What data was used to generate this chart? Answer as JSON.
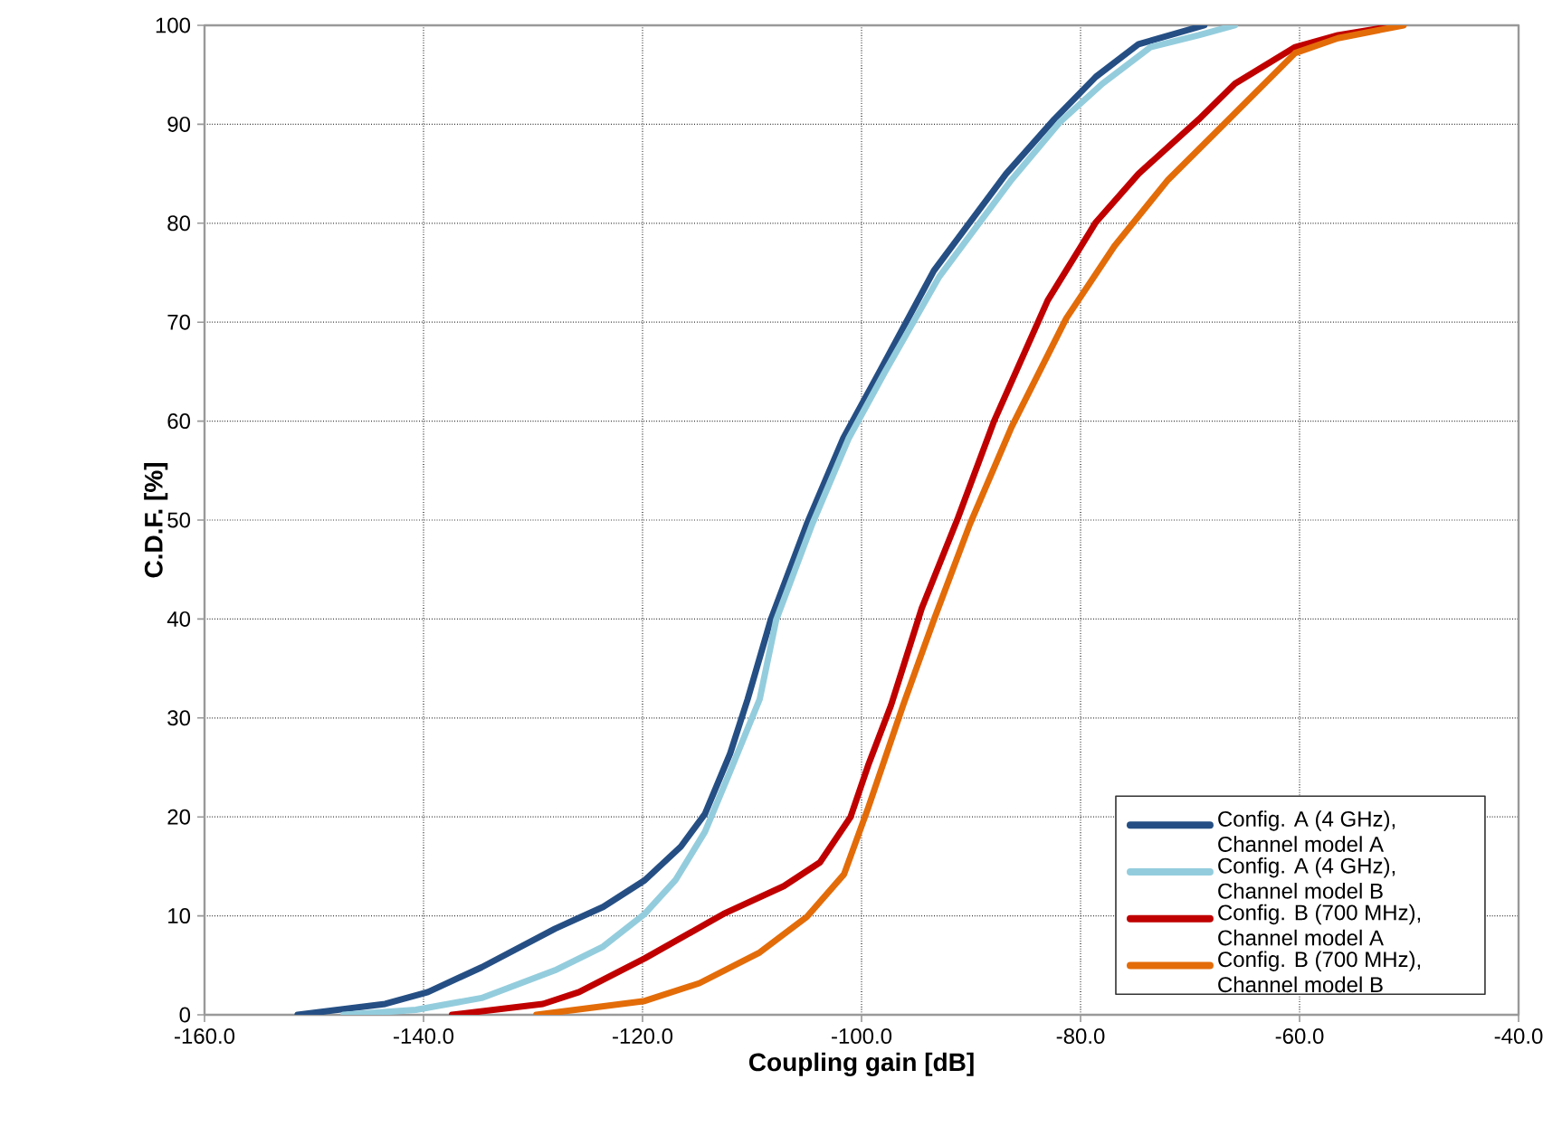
{
  "chart_data": {
    "type": "line",
    "xlabel": "Coupling gain [dB]",
    "ylabel": "C.D.F. [%]",
    "xlim": [
      -160,
      -40
    ],
    "ylim": [
      0,
      100
    ],
    "xticks": [
      {
        "value": -160,
        "label": "-160.0"
      },
      {
        "value": -140,
        "label": "-140.0"
      },
      {
        "value": -120,
        "label": "-120.0"
      },
      {
        "value": -100,
        "label": "-100.0"
      },
      {
        "value": -80,
        "label": "-80.0"
      },
      {
        "value": -60,
        "label": "-60.0"
      },
      {
        "value": -40,
        "label": "-40.0"
      }
    ],
    "yticks": [
      0,
      10,
      20,
      30,
      40,
      50,
      60,
      70,
      80,
      90,
      100
    ],
    "grid": true,
    "legend": "bottom right",
    "marker": "none",
    "line_style": "solid",
    "series": [
      {
        "name": "Config. A (4 GHz), Channel model A",
        "color": "#254f84",
        "x": [
          -151.5,
          -143.5,
          -139.6,
          -134.7,
          -128,
          -123.6,
          -119.8,
          -116.5,
          -114.3,
          -112,
          -110.4,
          -108.3,
          -105,
          -101.7,
          -98.4,
          -93.4,
          -86.8,
          -82.4,
          -78.6,
          -74.7,
          -68.7
        ],
        "values": [
          0,
          1.1,
          2.3,
          4.8,
          8.7,
          10.9,
          13.6,
          17,
          20.3,
          26.4,
          31.9,
          39.9,
          49.6,
          58.2,
          64.9,
          75.2,
          85,
          90.5,
          94.8,
          98.1,
          100
        ]
      },
      {
        "name": "Config. A (4 GHz), Channel model B",
        "color": "#93cddd",
        "x": [
          -147.3,
          -140.7,
          -134.7,
          -128,
          -123.6,
          -119.8,
          -117,
          -114.3,
          -112,
          -109.3,
          -107.8,
          -104.5,
          -101.2,
          -97.9,
          -92.9,
          -86.3,
          -81.9,
          -78,
          -73.6,
          -69.2,
          -65.9
        ],
        "values": [
          0,
          0.5,
          1.7,
          4.5,
          6.9,
          10.2,
          13.6,
          18.5,
          24.6,
          31.9,
          39.9,
          49.6,
          58.2,
          64.9,
          74.6,
          84.4,
          90.2,
          94.1,
          97.8,
          99,
          100
        ]
      },
      {
        "name": "Config. B (700 MHz), Channel model A",
        "color": "#c00000",
        "x": [
          -137.4,
          -129.1,
          -125.8,
          -119.8,
          -112.6,
          -107.1,
          -103.8,
          -101,
          -99.4,
          -97.3,
          -94.5,
          -91.2,
          -87.9,
          -83,
          -78.6,
          -74.7,
          -69.2,
          -65.9,
          -60.4,
          -56.5,
          -51
        ],
        "values": [
          0,
          1.1,
          2.3,
          5.7,
          10.2,
          13,
          15.4,
          20,
          25.2,
          31.3,
          41.1,
          50.2,
          60,
          72.2,
          80.1,
          85,
          90.5,
          94.1,
          97.8,
          99,
          100
        ]
      },
      {
        "name": "Config. B (700 MHz), Channel model B",
        "color": "#e36c09",
        "x": [
          -129.7,
          -119.8,
          -114.8,
          -109.3,
          -105,
          -101.6,
          -99.4,
          -96.2,
          -93.4,
          -90.1,
          -86.3,
          -81.3,
          -76.9,
          -72,
          -67,
          -60.4,
          -56.5,
          -50.5
        ],
        "values": [
          0,
          1.4,
          3.2,
          6.3,
          9.9,
          14.2,
          20.9,
          31.3,
          39.9,
          49.6,
          59.4,
          70.4,
          77.7,
          84.4,
          89.9,
          97.2,
          98.7,
          100
        ]
      }
    ]
  }
}
